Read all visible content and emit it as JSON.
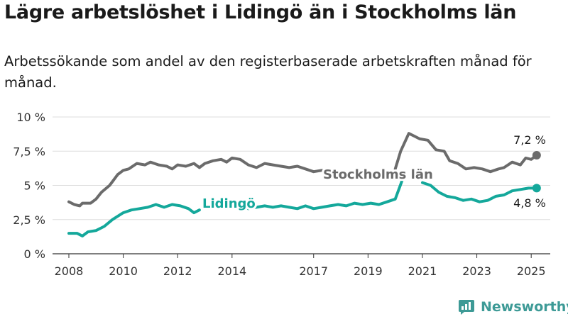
{
  "title": "Lägre arbetslöshet i Lidingö än i Stockholms län",
  "subtitle": "Arbetssökande som andel av den registerbaserade arbetskraften månad för månad.",
  "brand": {
    "name": "Newsworthy",
    "icon": "newsworthy-logo-icon"
  },
  "colors": {
    "stockholm": "#6b6b6b",
    "lidingo": "#14a89b",
    "grid": "#dddddd",
    "axis": "#333333"
  },
  "chart_data": {
    "type": "line",
    "title": "Lägre arbetslöshet i Lidingö än i Stockholms län",
    "xlabel": "",
    "ylabel": "",
    "x_ticks": [
      "2008",
      "2010",
      "2012",
      "2014",
      "2017",
      "2019",
      "2021",
      "2023",
      "2025"
    ],
    "y_ticks": [
      "0 %",
      "2,5 %",
      "5 %",
      "7,5 %",
      "10 %"
    ],
    "ylim": [
      0,
      10
    ],
    "grid": "horizontal",
    "series": [
      {
        "name": "Stockholms län",
        "end_label": "7,2 %",
        "segments": [
          [
            [
              2008.0,
              3.8
            ],
            [
              2008.2,
              3.6
            ],
            [
              2008.4,
              3.5
            ],
            [
              2008.5,
              3.7
            ],
            [
              2008.8,
              3.7
            ],
            [
              2009.0,
              4.0
            ],
            [
              2009.2,
              4.5
            ],
            [
              2009.5,
              5.0
            ],
            [
              2009.8,
              5.8
            ],
            [
              2010.0,
              6.1
            ],
            [
              2010.2,
              6.2
            ],
            [
              2010.5,
              6.6
            ],
            [
              2010.8,
              6.5
            ],
            [
              2011.0,
              6.7
            ],
            [
              2011.3,
              6.5
            ],
            [
              2011.6,
              6.4
            ],
            [
              2011.8,
              6.2
            ],
            [
              2012.0,
              6.5
            ],
            [
              2012.3,
              6.4
            ],
            [
              2012.6,
              6.6
            ],
            [
              2012.8,
              6.3
            ],
            [
              2013.0,
              6.6
            ],
            [
              2013.3,
              6.8
            ],
            [
              2013.6,
              6.9
            ],
            [
              2013.8,
              6.7
            ],
            [
              2014.0,
              7.0
            ],
            [
              2014.3,
              6.9
            ],
            [
              2014.6,
              6.5
            ],
            [
              2014.9,
              6.3
            ],
            [
              2015.2,
              6.6
            ],
            [
              2015.5,
              6.5
            ],
            [
              2015.8,
              6.4
            ],
            [
              2016.1,
              6.3
            ],
            [
              2016.4,
              6.4
            ],
            [
              2016.7,
              6.2
            ],
            [
              2017.0,
              6.0
            ],
            [
              2017.3,
              6.1
            ],
            [
              2017.6,
              6.0
            ],
            [
              2017.8,
              6.1
            ]
          ],
          [
            [
              2020.0,
              6.2
            ],
            [
              2020.2,
              7.5
            ],
            [
              2020.5,
              8.8
            ],
            [
              2020.7,
              8.6
            ],
            [
              2020.9,
              8.4
            ],
            [
              2021.2,
              8.3
            ],
            [
              2021.5,
              7.6
            ],
            [
              2021.8,
              7.5
            ],
            [
              2022.0,
              6.8
            ],
            [
              2022.3,
              6.6
            ],
            [
              2022.6,
              6.2
            ],
            [
              2022.9,
              6.3
            ],
            [
              2023.2,
              6.2
            ],
            [
              2023.5,
              6.0
            ],
            [
              2023.8,
              6.2
            ],
            [
              2024.0,
              6.3
            ],
            [
              2024.3,
              6.7
            ],
            [
              2024.6,
              6.5
            ],
            [
              2024.8,
              7.0
            ],
            [
              2025.0,
              6.9
            ],
            [
              2025.2,
              7.2
            ]
          ]
        ]
      },
      {
        "name": "Lidingö",
        "end_label": "4,8 %",
        "segments": [
          [
            [
              2008.0,
              1.5
            ],
            [
              2008.3,
              1.5
            ],
            [
              2008.5,
              1.3
            ],
            [
              2008.7,
              1.6
            ],
            [
              2009.0,
              1.7
            ],
            [
              2009.3,
              2.0
            ],
            [
              2009.6,
              2.5
            ],
            [
              2010.0,
              3.0
            ],
            [
              2010.3,
              3.2
            ],
            [
              2010.6,
              3.3
            ],
            [
              2010.9,
              3.4
            ],
            [
              2011.2,
              3.6
            ],
            [
              2011.5,
              3.4
            ],
            [
              2011.8,
              3.6
            ],
            [
              2012.1,
              3.5
            ],
            [
              2012.4,
              3.3
            ],
            [
              2012.6,
              3.0
            ],
            [
              2012.8,
              3.2
            ]
          ],
          [
            [
              2014.6,
              3.3
            ],
            [
              2014.9,
              3.4
            ],
            [
              2015.2,
              3.5
            ],
            [
              2015.5,
              3.4
            ],
            [
              2015.8,
              3.5
            ],
            [
              2016.1,
              3.4
            ],
            [
              2016.4,
              3.3
            ],
            [
              2016.7,
              3.5
            ],
            [
              2017.0,
              3.3
            ],
            [
              2017.3,
              3.4
            ],
            [
              2017.6,
              3.5
            ],
            [
              2017.9,
              3.6
            ],
            [
              2018.2,
              3.5
            ],
            [
              2018.5,
              3.7
            ],
            [
              2018.8,
              3.6
            ],
            [
              2019.1,
              3.7
            ],
            [
              2019.4,
              3.6
            ],
            [
              2019.7,
              3.8
            ],
            [
              2020.0,
              4.0
            ],
            [
              2020.3,
              5.6
            ]
          ],
          [
            [
              2021.0,
              5.2
            ],
            [
              2021.3,
              5.0
            ],
            [
              2021.6,
              4.5
            ],
            [
              2021.9,
              4.2
            ],
            [
              2022.2,
              4.1
            ],
            [
              2022.5,
              3.9
            ],
            [
              2022.8,
              4.0
            ],
            [
              2023.1,
              3.8
            ],
            [
              2023.4,
              3.9
            ],
            [
              2023.7,
              4.2
            ],
            [
              2024.0,
              4.3
            ],
            [
              2024.3,
              4.6
            ],
            [
              2024.6,
              4.7
            ],
            [
              2024.9,
              4.8
            ],
            [
              2025.2,
              4.8
            ]
          ]
        ]
      }
    ]
  }
}
